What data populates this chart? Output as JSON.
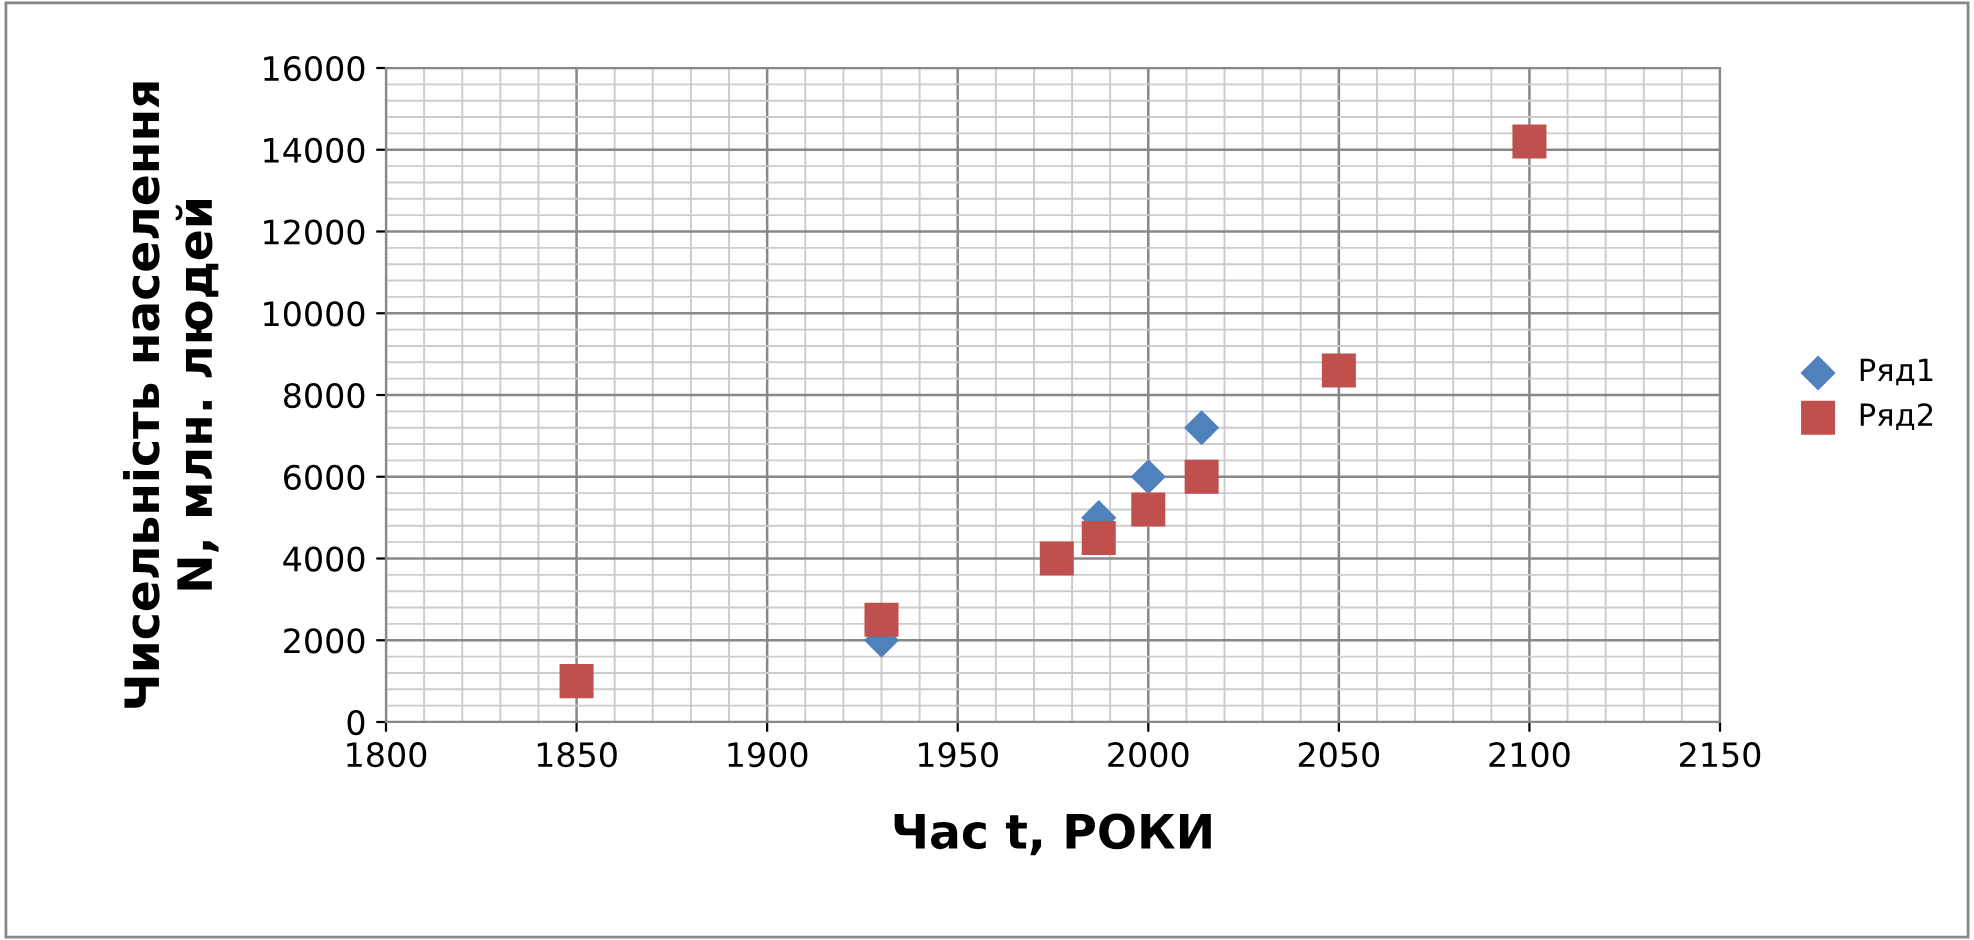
{
  "chart_data": {
    "type": "scatter",
    "xlabel": "Час t, РОКИ",
    "ylabel": "Чисельність населення\nN, млн. людей",
    "series": [
      {
        "name": "Ряд1",
        "color": "#4f81bd",
        "marker": "diamond",
        "x": [
          1930,
          1987,
          2000,
          2014
        ],
        "values": [
          2000,
          5000,
          6000,
          7200
        ]
      },
      {
        "name": "Ряд2",
        "color": "#c0504d",
        "marker": "square",
        "x": [
          1850,
          1930,
          1976,
          1987,
          2000,
          2014,
          2050,
          2100
        ],
        "values": [
          1000,
          2500,
          4000,
          4500,
          5200,
          6000,
          8600,
          14200
        ]
      }
    ],
    "xlim": [
      1800,
      2150
    ],
    "xticks": [
      1800,
      1850,
      1900,
      1950,
      2000,
      2050,
      2100,
      2150
    ],
    "ylim": [
      0,
      16000
    ],
    "yticks": [
      0,
      2000,
      4000,
      6000,
      8000,
      10000,
      12000,
      14000,
      16000
    ],
    "grid": true,
    "legend": "right"
  }
}
